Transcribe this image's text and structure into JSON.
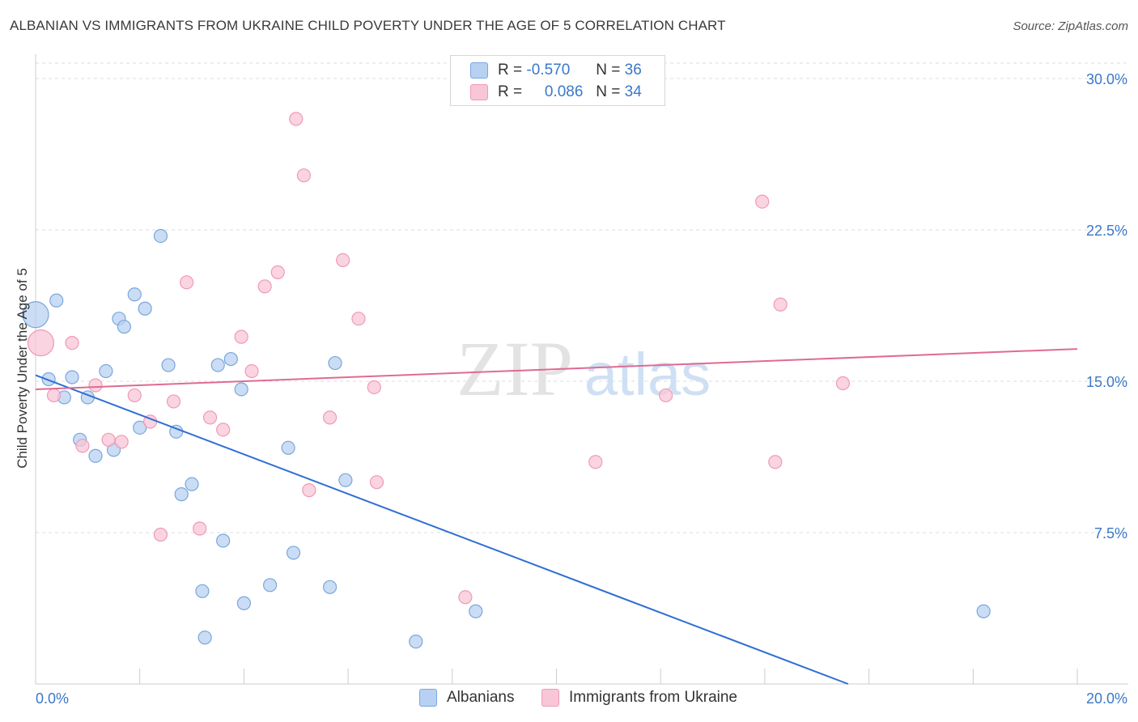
{
  "title": "ALBANIAN VS IMMIGRANTS FROM UKRAINE CHILD POVERTY UNDER THE AGE OF 5 CORRELATION CHART",
  "source": "Source: ZipAtlas.com",
  "watermark": {
    "zip": "ZIP",
    "atlas": "atlas"
  },
  "legend": {
    "r_label": "R =",
    "n_label": "N =",
    "rows": [
      {
        "r": "-0.570",
        "n": "36"
      },
      {
        "r": "0.086",
        "n": "34"
      }
    ]
  },
  "colors": {
    "blue_fill": "#b8d1f2",
    "blue_stroke": "#7aa6dd",
    "blue_line": "#2f6fd3",
    "pink_fill": "#f8c6d6",
    "pink_stroke": "#ef9ab7",
    "pink_line": "#e06a93",
    "tick_label": "#3a78c9",
    "grid": "#dcdcdc"
  },
  "chart_data": {
    "type": "scatter",
    "title": "ALBANIAN VS IMMIGRANTS FROM UKRAINE CHILD POVERTY UNDER THE AGE OF 5 CORRELATION CHART",
    "xlabel": "",
    "ylabel": "Child Poverty Under the Age of 5",
    "xlim": [
      0,
      20
    ],
    "ylim": [
      0,
      30
    ],
    "x_tick_labels": [
      "0.0%",
      "20.0%"
    ],
    "y_ticks": [
      7.5,
      15,
      22.5,
      30
    ],
    "y_tick_labels": [
      "7.5%",
      "15.0%",
      "22.5%",
      "30.0%"
    ],
    "grid": true,
    "legend_position": "top-center",
    "series": [
      {
        "name": "Albanians",
        "points": [
          {
            "x": 0.0,
            "y": 18.3,
            "big": true
          },
          {
            "x": 0.4,
            "y": 19.0
          },
          {
            "x": 0.25,
            "y": 15.1
          },
          {
            "x": 0.55,
            "y": 14.2
          },
          {
            "x": 0.7,
            "y": 15.2
          },
          {
            "x": 1.0,
            "y": 14.2
          },
          {
            "x": 0.85,
            "y": 12.1
          },
          {
            "x": 1.15,
            "y": 11.3
          },
          {
            "x": 1.35,
            "y": 15.5
          },
          {
            "x": 1.5,
            "y": 11.6
          },
          {
            "x": 1.6,
            "y": 18.1
          },
          {
            "x": 1.7,
            "y": 17.7
          },
          {
            "x": 1.9,
            "y": 19.3
          },
          {
            "x": 2.1,
            "y": 18.6
          },
          {
            "x": 2.0,
            "y": 12.7
          },
          {
            "x": 2.4,
            "y": 22.2
          },
          {
            "x": 2.55,
            "y": 15.8
          },
          {
            "x": 2.7,
            "y": 12.5
          },
          {
            "x": 2.8,
            "y": 9.4
          },
          {
            "x": 3.0,
            "y": 9.9
          },
          {
            "x": 3.2,
            "y": 4.6
          },
          {
            "x": 3.25,
            "y": 2.3
          },
          {
            "x": 3.5,
            "y": 15.8
          },
          {
            "x": 3.6,
            "y": 7.1
          },
          {
            "x": 3.75,
            "y": 16.1
          },
          {
            "x": 3.95,
            "y": 14.6
          },
          {
            "x": 4.0,
            "y": 4.0
          },
          {
            "x": 4.5,
            "y": 4.9
          },
          {
            "x": 4.85,
            "y": 11.7
          },
          {
            "x": 4.95,
            "y": 6.5
          },
          {
            "x": 5.65,
            "y": 4.8
          },
          {
            "x": 5.75,
            "y": 15.9
          },
          {
            "x": 5.95,
            "y": 10.1
          },
          {
            "x": 7.3,
            "y": 2.1
          },
          {
            "x": 8.45,
            "y": 3.6
          },
          {
            "x": 18.2,
            "y": 3.6
          }
        ],
        "trend": {
          "x0": 0,
          "y0": 15.3,
          "x1": 15.6,
          "y1": 0
        }
      },
      {
        "name": "Immigrants from Ukraine",
        "points": [
          {
            "x": 0.1,
            "y": 16.9,
            "big": true
          },
          {
            "x": 0.35,
            "y": 14.3
          },
          {
            "x": 0.7,
            "y": 16.9
          },
          {
            "x": 0.9,
            "y": 11.8
          },
          {
            "x": 1.15,
            "y": 14.8
          },
          {
            "x": 1.4,
            "y": 12.1
          },
          {
            "x": 1.65,
            "y": 12.0
          },
          {
            "x": 1.9,
            "y": 14.3
          },
          {
            "x": 2.2,
            "y": 13.0
          },
          {
            "x": 2.4,
            "y": 7.4
          },
          {
            "x": 2.65,
            "y": 14.0
          },
          {
            "x": 2.9,
            "y": 19.9
          },
          {
            "x": 3.15,
            "y": 7.7
          },
          {
            "x": 3.35,
            "y": 13.2
          },
          {
            "x": 3.6,
            "y": 12.6
          },
          {
            "x": 3.95,
            "y": 17.2
          },
          {
            "x": 4.15,
            "y": 15.5
          },
          {
            "x": 4.4,
            "y": 19.7
          },
          {
            "x": 4.65,
            "y": 20.4
          },
          {
            "x": 5.0,
            "y": 28.0
          },
          {
            "x": 5.15,
            "y": 25.2
          },
          {
            "x": 5.25,
            "y": 9.6
          },
          {
            "x": 5.65,
            "y": 13.2
          },
          {
            "x": 5.9,
            "y": 21.0
          },
          {
            "x": 6.2,
            "y": 18.1
          },
          {
            "x": 6.5,
            "y": 14.7
          },
          {
            "x": 6.55,
            "y": 10.0
          },
          {
            "x": 8.25,
            "y": 4.3
          },
          {
            "x": 10.75,
            "y": 11.0
          },
          {
            "x": 12.1,
            "y": 14.3
          },
          {
            "x": 13.95,
            "y": 23.9
          },
          {
            "x": 14.2,
            "y": 11.0
          },
          {
            "x": 14.3,
            "y": 18.8
          },
          {
            "x": 15.5,
            "y": 14.9
          }
        ],
        "trend": {
          "x0": 0,
          "y0": 14.6,
          "x1": 20,
          "y1": 16.6
        }
      }
    ]
  },
  "bottom_legend": [
    "Albanians",
    "Immigrants from Ukraine"
  ]
}
